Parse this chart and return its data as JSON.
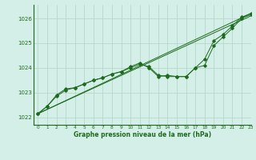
{
  "title": "Graphe pression niveau de la mer (hPa)",
  "background_color": "#d4eee8",
  "grid_color": "#b8d8cc",
  "line_color": "#1e6b1e",
  "text_color": "#1e6b1e",
  "xlim": [
    -0.5,
    23
  ],
  "ylim": [
    1021.7,
    1026.55
  ],
  "yticks": [
    1022,
    1023,
    1024,
    1025,
    1026
  ],
  "xticks": [
    0,
    1,
    2,
    3,
    4,
    5,
    6,
    7,
    8,
    9,
    10,
    11,
    12,
    13,
    14,
    15,
    16,
    17,
    18,
    19,
    20,
    21,
    22,
    23
  ],
  "series1": [
    [
      0,
      1022.15
    ],
    [
      1,
      1022.45
    ],
    [
      2,
      1022.9
    ],
    [
      3,
      1023.15
    ],
    [
      4,
      1023.2
    ],
    [
      5,
      1023.35
    ],
    [
      6,
      1023.5
    ],
    [
      7,
      1023.6
    ],
    [
      8,
      1023.75
    ],
    [
      9,
      1023.85
    ],
    [
      10,
      1024.05
    ],
    [
      11,
      1024.2
    ],
    [
      12,
      1024.0
    ],
    [
      13,
      1023.65
    ],
    [
      14,
      1023.7
    ],
    [
      15,
      1023.65
    ],
    [
      16,
      1023.65
    ],
    [
      17,
      1024.0
    ],
    [
      18,
      1024.35
    ],
    [
      19,
      1025.1
    ],
    [
      20,
      1025.35
    ],
    [
      21,
      1025.7
    ],
    [
      22,
      1026.05
    ],
    [
      23,
      1026.2
    ]
  ],
  "series2": [
    [
      0,
      1022.15
    ],
    [
      1,
      1022.45
    ],
    [
      2,
      1022.85
    ],
    [
      3,
      1023.1
    ],
    [
      4,
      1023.2
    ],
    [
      5,
      1023.35
    ],
    [
      6,
      1023.5
    ],
    [
      7,
      1023.6
    ],
    [
      8,
      1023.75
    ],
    [
      9,
      1023.85
    ],
    [
      10,
      1024.0
    ],
    [
      11,
      1024.15
    ],
    [
      12,
      1024.05
    ],
    [
      13,
      1023.7
    ],
    [
      14,
      1023.65
    ],
    [
      15,
      1023.65
    ],
    [
      16,
      1023.65
    ],
    [
      17,
      1024.0
    ],
    [
      18,
      1024.1
    ],
    [
      19,
      1024.9
    ],
    [
      20,
      1025.25
    ],
    [
      21,
      1025.6
    ],
    [
      22,
      1026.0
    ],
    [
      23,
      1026.15
    ]
  ],
  "series3_straight": [
    [
      0,
      1022.15
    ],
    [
      23,
      1026.2
    ]
  ],
  "series4_straight": [
    [
      0,
      1022.15
    ],
    [
      23,
      1026.1
    ]
  ]
}
